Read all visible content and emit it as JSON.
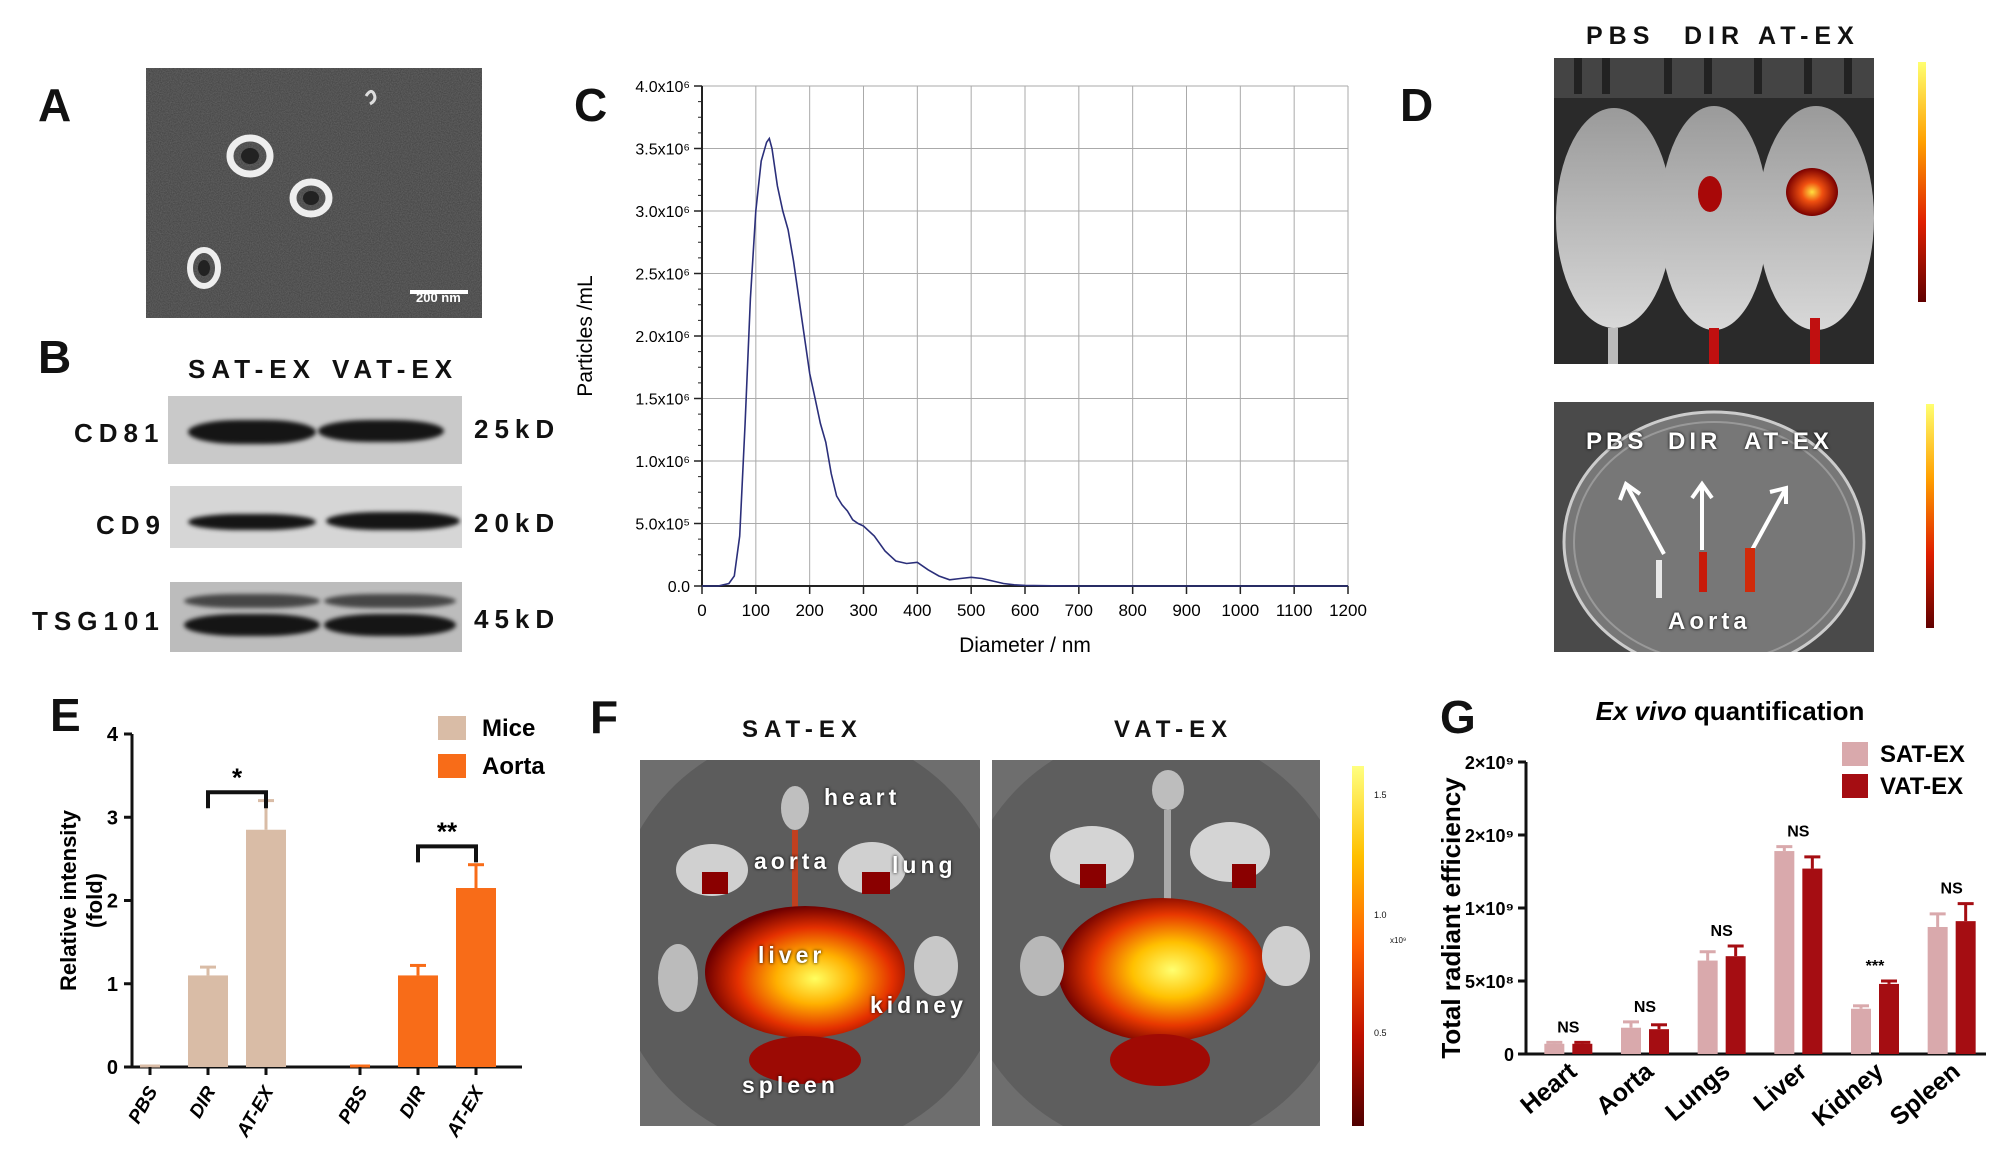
{
  "panels": {
    "A": {
      "letter": "A",
      "scale_label": "200 nm"
    },
    "B": {
      "letter": "B",
      "col_labels": [
        "SAT-EX",
        "VAT-EX"
      ],
      "rows": [
        {
          "protein": "CD81",
          "size": "25kD"
        },
        {
          "protein": "CD9",
          "size": "20kD"
        },
        {
          "protein": "TSG101",
          "size": "45kD"
        }
      ]
    },
    "C": {
      "letter": "C"
    },
    "D": {
      "letter": "D",
      "top_labels": [
        "PBS",
        "DIR",
        "AT-EX"
      ],
      "bottom_labels": [
        "PBS",
        "DIR",
        "AT-EX"
      ],
      "aorta_label": "Aorta"
    },
    "E": {
      "letter": "E"
    },
    "F": {
      "letter": "F",
      "left_title": "SAT-EX",
      "right_title": "VAT-EX",
      "organs": {
        "heart": "heart",
        "aorta": "aorta",
        "lung": "lung",
        "liver": "liver",
        "kidney": "kidney",
        "spleen": "spleen"
      },
      "colorbar_ticks": [
        "1.5",
        "1.0",
        "0.5"
      ],
      "colorbar_unit": "x10⁹"
    },
    "G": {
      "letter": "G"
    }
  },
  "chart_data": [
    {
      "id": "C",
      "type": "line",
      "title": "",
      "xlabel": "Diameter / nm",
      "ylabel": "Particles /mL",
      "xlim": [
        0,
        1200
      ],
      "ylim": [
        0,
        4000000
      ],
      "xticks": [
        "0",
        "100",
        "200",
        "300",
        "400",
        "500",
        "600",
        "700",
        "800",
        "900",
        "1000",
        "1100",
        "1200"
      ],
      "yticks": [
        "0.0",
        "5.0x10⁵",
        "1.0x10⁶",
        "1.5x10⁶",
        "2.0x10⁶",
        "2.5x10⁶",
        "3.0x10⁶",
        "3.5x10⁶",
        "4.0x10⁶"
      ],
      "grid": true,
      "series": [
        {
          "name": "size distribution",
          "color": "#2b2f7a",
          "x": [
            0,
            30,
            50,
            60,
            70,
            80,
            90,
            100,
            110,
            120,
            125,
            130,
            140,
            150,
            160,
            170,
            180,
            190,
            200,
            210,
            220,
            230,
            240,
            250,
            260,
            270,
            280,
            290,
            300,
            320,
            340,
            360,
            380,
            400,
            420,
            440,
            460,
            480,
            500,
            520,
            540,
            560,
            580,
            600,
            650,
            700,
            800,
            900,
            1000,
            1100,
            1200
          ],
          "y": [
            0,
            0,
            20000,
            80000,
            400000,
            1300000,
            2300000,
            3000000,
            3400000,
            3550000,
            3580000,
            3500000,
            3200000,
            3000000,
            2850000,
            2600000,
            2300000,
            2000000,
            1700000,
            1500000,
            1300000,
            1150000,
            900000,
            720000,
            650000,
            600000,
            530000,
            500000,
            480000,
            400000,
            280000,
            200000,
            180000,
            190000,
            130000,
            80000,
            50000,
            60000,
            70000,
            60000,
            40000,
            20000,
            10000,
            5000,
            2000,
            0,
            0,
            0,
            0,
            0,
            0
          ]
        }
      ]
    },
    {
      "id": "E",
      "type": "bar",
      "ylabel": "Relative intensity (fold)",
      "ylim": [
        0,
        4
      ],
      "yticks": [
        "0",
        "1",
        "2",
        "3",
        "4"
      ],
      "categories": [
        "PBS",
        "DIR",
        "AT-EX",
        "PBS",
        "DIR",
        "AT-EX"
      ],
      "series": [
        {
          "name": "Mice",
          "color": "#d9bca6",
          "values": [
            0,
            1.1,
            2.85,
            null,
            null,
            null
          ],
          "errors": [
            0,
            0.1,
            0.35,
            null,
            null,
            null
          ]
        },
        {
          "name": "Aorta",
          "color": "#f86c18",
          "values": [
            null,
            null,
            null,
            0,
            1.1,
            2.15
          ],
          "errors": [
            null,
            null,
            null,
            0,
            0.12,
            0.28
          ]
        }
      ],
      "annotations": [
        {
          "text": "*",
          "between": [
            "DIR",
            "AT-EX"
          ],
          "group": "Mice"
        },
        {
          "text": "**",
          "between": [
            "DIR",
            "AT-EX"
          ],
          "group": "Aorta"
        }
      ],
      "legend": "top-right"
    },
    {
      "id": "G",
      "type": "bar",
      "title": "Ex vivo quantification",
      "title_italic": "Ex vivo",
      "title_rest": " quantification",
      "ylabel": "Total radiant efficiency",
      "ylim": [
        0,
        2000000000
      ],
      "yticks": [
        "0",
        "5×10⁸",
        "1×10⁹",
        "2×10⁹",
        "2×10⁹"
      ],
      "categories": [
        "Heart",
        "Aorta",
        "Lungs",
        "Liver",
        "Kidney",
        "Spleen"
      ],
      "series": [
        {
          "name": "SAT-EX",
          "color": "#d9a9ac",
          "values": [
            0.07,
            0.18,
            0.64,
            1.39,
            0.31,
            0.87
          ],
          "errors": [
            0.01,
            0.04,
            0.06,
            0.03,
            0.02,
            0.09
          ]
        },
        {
          "name": "VAT-EX",
          "color": "#a50d12",
          "values": [
            0.07,
            0.17,
            0.67,
            1.27,
            0.48,
            0.91
          ],
          "errors": [
            0.01,
            0.03,
            0.07,
            0.08,
            0.02,
            0.12
          ]
        }
      ],
      "value_unit": "x10^9 scaled to axis",
      "significance": [
        "NS",
        "NS",
        "NS",
        "NS",
        "***",
        "NS"
      ],
      "legend": "top-right"
    }
  ]
}
